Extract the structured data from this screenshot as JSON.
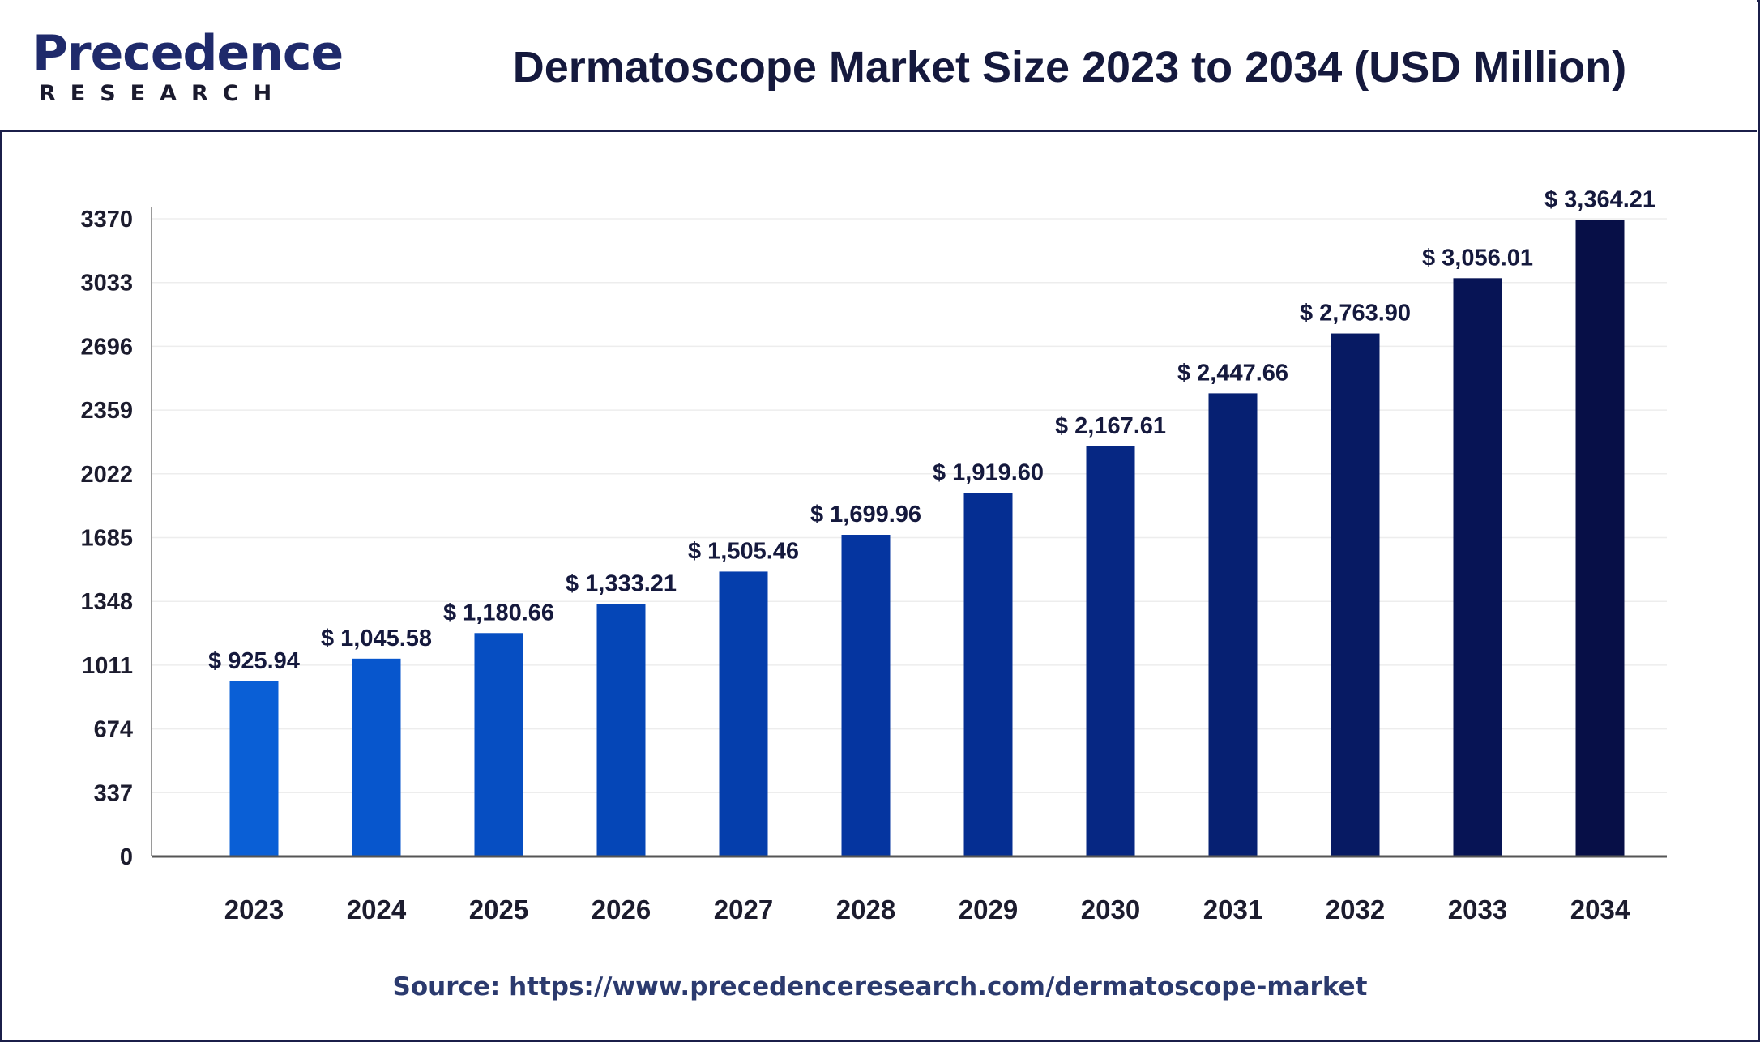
{
  "header": {
    "logo_word": "Precedence",
    "logo_sub": "RESEARCH"
  },
  "chart_data": {
    "type": "bar",
    "title": "Dermatoscope Market Size 2023 to 2034 (USD Million)",
    "xlabel": "",
    "ylabel": "",
    "categories": [
      "2023",
      "2024",
      "2025",
      "2026",
      "2027",
      "2028",
      "2029",
      "2030",
      "2031",
      "2032",
      "2033",
      "2034"
    ],
    "values": [
      925.94,
      1045.58,
      1180.66,
      1333.21,
      1505.46,
      1699.96,
      1919.6,
      2167.61,
      2447.66,
      2763.9,
      3056.01,
      3364.21
    ],
    "value_labels": [
      "$ 925.94",
      "$ 1,045.58",
      "$ 1,180.66",
      "$ 1,333.21",
      "$ 1,505.46",
      "$ 1,699.96",
      "$ 1,919.60",
      "$ 2,167.61",
      "$ 2,447.66",
      "$ 2,763.90",
      "$ 3,056.01",
      "$ 3,364.21"
    ],
    "y_ticks": [
      "0",
      "337",
      "674",
      "1011",
      "1348",
      "1685",
      "2022",
      "2359",
      "2696",
      "3033",
      "3370"
    ],
    "ylim": [
      0,
      3370
    ],
    "grid": true,
    "legend": "none",
    "bar_colors": [
      "#0a5fd6",
      "#0756cd",
      "#064ec2",
      "#0546b7",
      "#053eac",
      "#0535a0",
      "#052e92",
      "#062783",
      "#062072",
      "#071a63",
      "#071455",
      "#070f47"
    ]
  },
  "footer": {
    "source": "Source: https://www.precedenceresearch.com/dermatoscope-market"
  }
}
